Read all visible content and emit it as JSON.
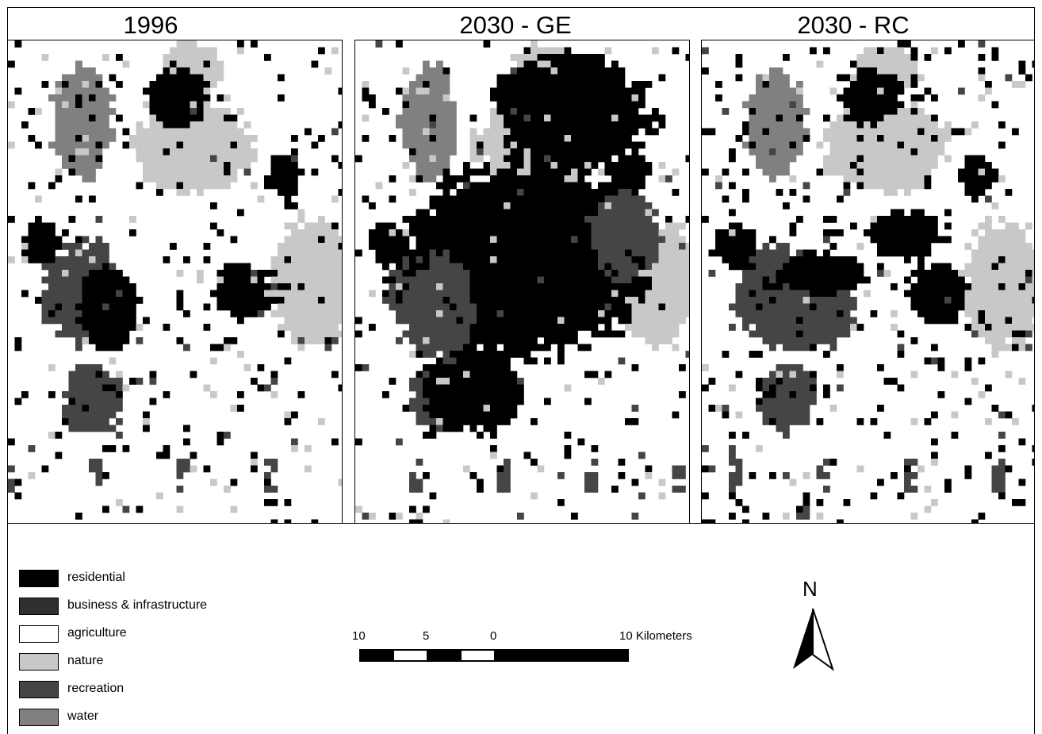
{
  "maps": [
    {
      "title": "1996"
    },
    {
      "title": "2030 - GE"
    },
    {
      "title": "2030 - RC"
    }
  ],
  "legend": [
    {
      "label": "residential",
      "color": "#000000"
    },
    {
      "label": "business & infrastructure",
      "color": "#2f2f2f"
    },
    {
      "label": "agriculture",
      "color": "#ffffff"
    },
    {
      "label": "nature",
      "color": "#c8c8c8"
    },
    {
      "label": "recreation",
      "color": "#454545"
    },
    {
      "label": "water",
      "color": "#808080"
    }
  ],
  "scale": {
    "labels": [
      "10",
      "5",
      "0",
      "10 Kilometers"
    ]
  },
  "north_arrow": {
    "letter": "N",
    "icon": "north-arrow-icon"
  }
}
